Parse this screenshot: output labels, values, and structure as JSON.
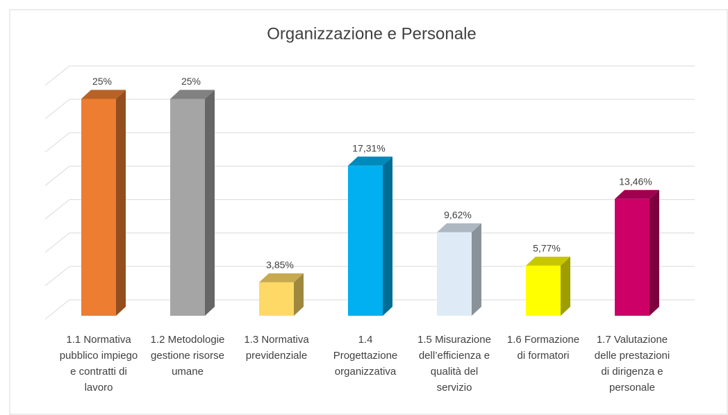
{
  "chart_data": {
    "type": "bar3d",
    "title": "Organizzazione e Personale",
    "categories": [
      "1.1 Normativa pubblico impiego e contratti di lavoro",
      "1.2 Metodologie gestione risorse umane",
      "1.3 Normativa previdenziale",
      "1.4 Progettazione organizzativa",
      "1.5 Misurazione dell’efficienza e qualità del servizio",
      "1.6 Formazione di formatori",
      "1.7 Valutazione delle prestazioni di dirigenza e personale"
    ],
    "values": [
      25,
      25,
      3.85,
      17.31,
      9.62,
      5.77,
      13.46
    ],
    "value_labels": [
      "25%",
      "25%",
      "3,85%",
      "17,31%",
      "9,62%",
      "5,77%",
      "13,46%"
    ],
    "colors": [
      "#ED7D31",
      "#A5A5A5",
      "#FFD966",
      "#00B0F0",
      "#DEEBF7",
      "#FFFF00",
      "#CC0066"
    ],
    "ylim": [
      0,
      28
    ],
    "yticks": [
      0,
      4,
      8,
      12,
      16,
      20,
      24,
      28
    ],
    "grid": true
  }
}
